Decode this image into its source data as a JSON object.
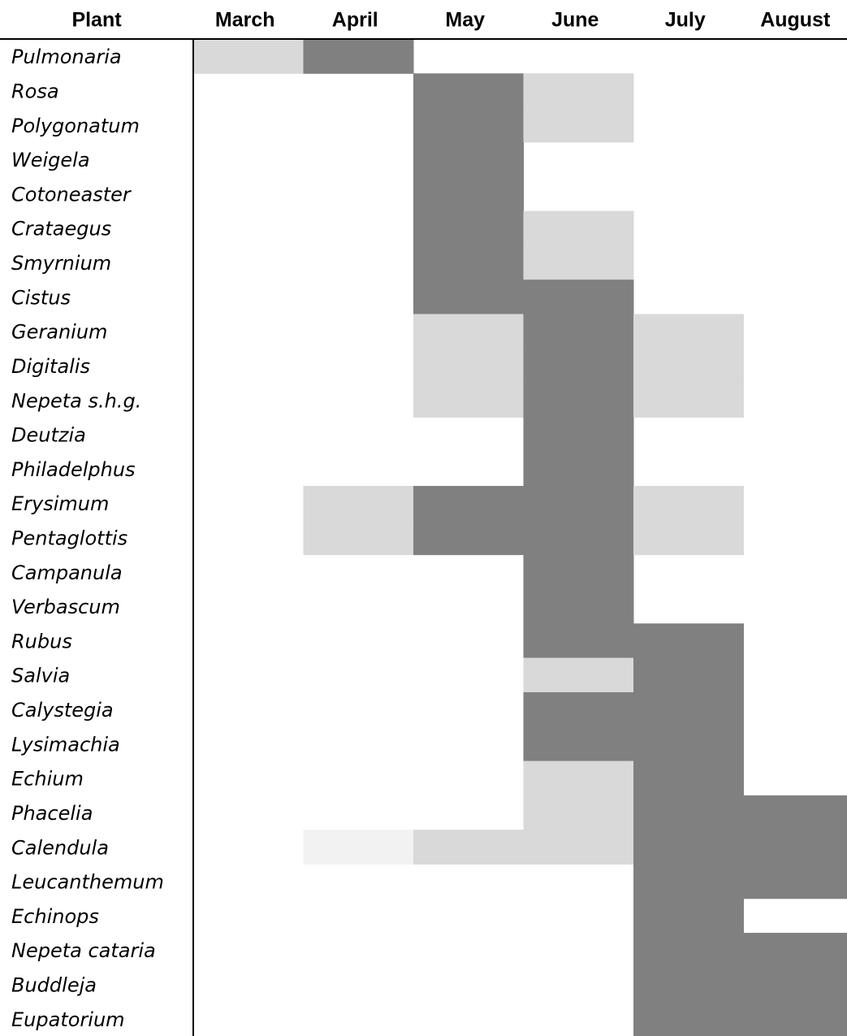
{
  "table": {
    "header": [
      "Plant",
      "March",
      "April",
      "May",
      "June",
      "July",
      "August"
    ],
    "rows": [
      {
        "name": "Pulmonaria",
        "fills": [
          "#d9d9d9",
          "#808080",
          null,
          null,
          null,
          null
        ]
      },
      {
        "name": "Rosa",
        "fills": [
          null,
          null,
          "#808080",
          "#d9d9d9",
          null,
          null
        ]
      },
      {
        "name": "Polygonatum",
        "fills": [
          null,
          null,
          "#808080",
          "#d9d9d9",
          null,
          null
        ]
      },
      {
        "name": "Weigela",
        "fills": [
          null,
          null,
          "#808080",
          null,
          null,
          null
        ]
      },
      {
        "name": "Cotoneaster",
        "fills": [
          null,
          null,
          "#808080",
          null,
          null,
          null
        ]
      },
      {
        "name": "Crataegus",
        "fills": [
          null,
          null,
          "#808080",
          "#d9d9d9",
          null,
          null
        ]
      },
      {
        "name": "Smyrnium",
        "fills": [
          null,
          null,
          "#808080",
          "#d9d9d9",
          null,
          null
        ]
      },
      {
        "name": "Cistus",
        "fills": [
          null,
          null,
          "#808080",
          "#808080",
          null,
          null
        ]
      },
      {
        "name": "Geranium",
        "fills": [
          null,
          null,
          "#d9d9d9",
          "#808080",
          "#d9d9d9",
          null
        ]
      },
      {
        "name": "Digitalis",
        "fills": [
          null,
          null,
          "#d9d9d9",
          "#808080",
          "#d9d9d9",
          null
        ]
      },
      {
        "name": "Nepeta s.h.g.",
        "fills": [
          null,
          null,
          "#d9d9d9",
          "#808080",
          "#d9d9d9",
          null
        ]
      },
      {
        "name": "Deutzia",
        "fills": [
          null,
          null,
          null,
          "#808080",
          null,
          null
        ]
      },
      {
        "name": "Philadelphus",
        "fills": [
          null,
          null,
          null,
          "#808080",
          null,
          null
        ]
      },
      {
        "name": "Erysimum",
        "fills": [
          null,
          "#d9d9d9",
          "#808080",
          "#808080",
          "#d9d9d9",
          null
        ]
      },
      {
        "name": "Pentaglottis",
        "fills": [
          null,
          "#d9d9d9",
          "#808080",
          "#808080",
          "#d9d9d9",
          null
        ]
      },
      {
        "name": "Campanula",
        "fills": [
          null,
          null,
          null,
          "#808080",
          null,
          null
        ]
      },
      {
        "name": "Verbascum",
        "fills": [
          null,
          null,
          null,
          "#808080",
          null,
          null
        ]
      },
      {
        "name": "Rubus",
        "fills": [
          null,
          null,
          null,
          "#808080",
          "#808080",
          null
        ]
      },
      {
        "name": "Salvia",
        "fills": [
          null,
          null,
          null,
          "#d9d9d9",
          "#808080",
          null
        ]
      },
      {
        "name": "Calystegia",
        "fills": [
          null,
          null,
          null,
          "#808080",
          "#808080",
          null
        ]
      },
      {
        "name": "Lysimachia",
        "fills": [
          null,
          null,
          null,
          "#808080",
          "#808080",
          null
        ]
      },
      {
        "name": "Echium",
        "fills": [
          null,
          null,
          null,
          "#d9d9d9",
          "#808080",
          null
        ]
      },
      {
        "name": "Phacelia",
        "fills": [
          null,
          null,
          null,
          "#d9d9d9",
          "#808080",
          "#808080"
        ]
      },
      {
        "name": "Calendula",
        "fills": [
          null,
          "#f2f2f2",
          "#d9d9d9",
          "#d9d9d9",
          "#808080",
          "#808080"
        ]
      },
      {
        "name": "Leucanthemum",
        "fills": [
          null,
          null,
          null,
          null,
          "#808080",
          "#808080"
        ]
      },
      {
        "name": "Echinops",
        "fills": [
          null,
          null,
          null,
          null,
          "#808080",
          null
        ]
      },
      {
        "name": "Nepeta cataria",
        "fills": [
          null,
          null,
          null,
          null,
          "#808080",
          "#808080"
        ]
      },
      {
        "name": "Buddleja",
        "fills": [
          null,
          null,
          null,
          null,
          "#808080",
          "#808080"
        ]
      },
      {
        "name": "Eupatorium",
        "fills": [
          null,
          null,
          null,
          null,
          "#808080",
          "#808080"
        ]
      }
    ]
  }
}
